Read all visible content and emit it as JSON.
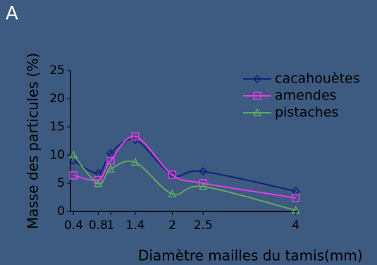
{
  "chart_data": {
    "type": "line",
    "panel_label": "A",
    "x_label": "Diamètre mailles du tamis(mm)",
    "y_label": "Masse des particules (%)",
    "x": [
      0.4,
      0.8,
      1,
      1.4,
      2,
      2.5,
      4
    ],
    "series": [
      {
        "name": "cacahouètes",
        "color": "#14207a",
        "marker": "diamond",
        "values": [
          9,
          6.8,
          10.3,
          12.7,
          6.5,
          7.1,
          3.6
        ]
      },
      {
        "name": "amendes",
        "color": "#e83be8",
        "marker": "square",
        "values": [
          6.4,
          5.6,
          9,
          13.3,
          6.5,
          5,
          2.4
        ]
      },
      {
        "name": "pistaches",
        "color": "#5fa862",
        "marker": "triangle",
        "values": [
          10,
          4.9,
          7.5,
          8.7,
          3.1,
          4.4,
          0.2
        ]
      }
    ],
    "xlim": [
      0.35,
      4.05
    ],
    "xticks": [
      0.4,
      0.8,
      1,
      1.4,
      2,
      2.5,
      4
    ],
    "ylim": [
      0,
      25
    ],
    "yticks": [
      0,
      5,
      10,
      15,
      20,
      25
    ],
    "legend": "top-right"
  }
}
